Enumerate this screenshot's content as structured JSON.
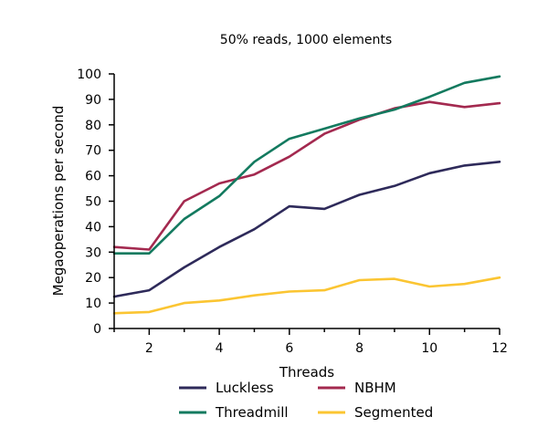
{
  "chart_data": {
    "type": "line",
    "title": "50% reads, 1000 elements",
    "xlabel": "Threads",
    "ylabel": "Megaoperations per second",
    "xlim": [
      1,
      12
    ],
    "ylim": [
      0,
      100
    ],
    "xticks": [
      2,
      4,
      6,
      8,
      10,
      12
    ],
    "yticks": [
      0,
      10,
      20,
      30,
      40,
      50,
      60,
      70,
      80,
      90,
      100
    ],
    "grid": false,
    "legend_position": "bottom",
    "x": [
      1,
      2,
      3,
      4,
      5,
      6,
      7,
      8,
      9,
      10,
      11,
      12
    ],
    "series": [
      {
        "name": "Luckless",
        "color": "#2e2a5a",
        "values": [
          12.5,
          15,
          24,
          32,
          39,
          48,
          47,
          52.5,
          56,
          61,
          64,
          65.5
        ]
      },
      {
        "name": "NBHM",
        "color": "#a3294f",
        "values": [
          32,
          31,
          50,
          57,
          60.5,
          67.5,
          76.5,
          82,
          86.5,
          89,
          87,
          88.5
        ]
      },
      {
        "name": "Threadmill",
        "color": "#137a5f",
        "values": [
          29.5,
          29.5,
          43,
          52,
          65.5,
          74.5,
          78.5,
          82.5,
          86,
          91,
          96.5,
          99
        ]
      },
      {
        "name": "Segmented",
        "color": "#fbc532",
        "values": [
          6,
          6.5,
          10,
          11,
          13,
          14.5,
          15,
          19,
          19.5,
          16.5,
          17.5,
          20
        ]
      }
    ]
  }
}
